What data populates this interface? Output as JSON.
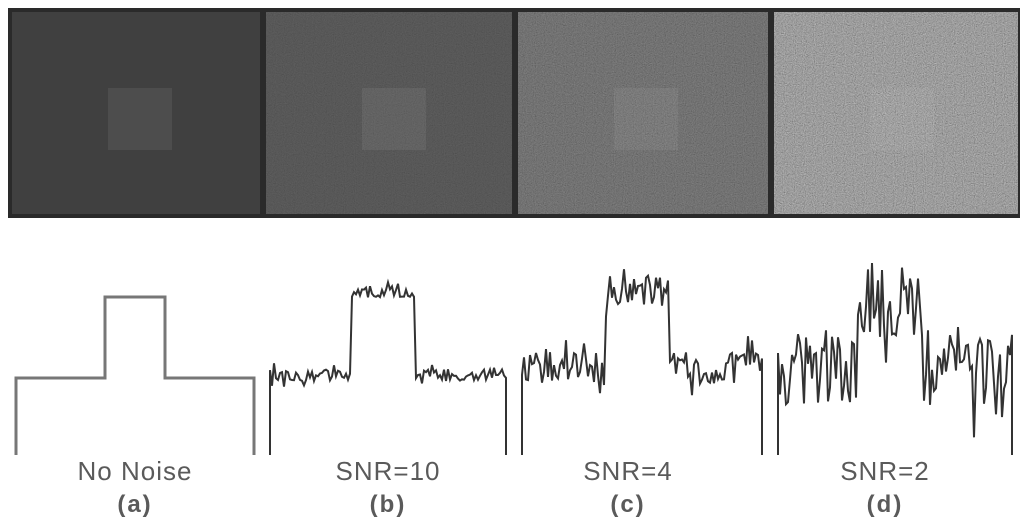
{
  "panels": [
    {
      "label": "No Noise",
      "tag": "(a)"
    },
    {
      "label": "SNR=10",
      "tag": "(b)"
    },
    {
      "label": "SNR=4",
      "tag": "(c)"
    },
    {
      "label": "SNR=2",
      "tag": "(d)"
    }
  ]
}
